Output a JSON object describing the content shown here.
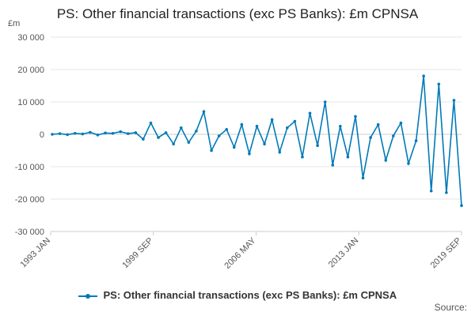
{
  "chart_data": {
    "type": "line",
    "title": "PS: Other financial transactions (exc PS Banks): £m CPNSA",
    "ylabel": "£m",
    "ylim": [
      -30000,
      30000
    ],
    "yticks": [
      "30 000",
      "20 000",
      "10 000",
      "0",
      "-10 000",
      "-20 000",
      "-30 000"
    ],
    "ytick_values": [
      30000,
      20000,
      10000,
      0,
      -10000,
      -20000,
      -30000
    ],
    "xticks": [
      "1993 JAN",
      "1999 SEP",
      "2006 MAY",
      "2013 JAN",
      "2019 SEP"
    ],
    "grid": "horizontal",
    "legend_position": "bottom",
    "colors": {
      "series": "#007ab8",
      "grid": "#e6e6e6",
      "axis": "#cccccc"
    },
    "x": [
      "1993 JAN",
      "1993 JUL",
      "1994 JAN",
      "1994 JUL",
      "1995 JAN",
      "1995 JUL",
      "1996 JAN",
      "1996 JUL",
      "1997 JAN",
      "1997 JUL",
      "1998 JAN",
      "1998 JUL",
      "1999 JAN",
      "1999 JUL",
      "2000 JAN",
      "2000 JUL",
      "2001 JAN",
      "2001 JUL",
      "2002 JAN",
      "2002 JUL",
      "2003 JAN",
      "2003 JUL",
      "2004 JAN",
      "2004 JUL",
      "2005 JAN",
      "2005 JUL",
      "2006 JAN",
      "2006 JUL",
      "2007 JAN",
      "2007 JUL",
      "2008 JAN",
      "2008 JUL",
      "2009 JAN",
      "2009 JUL",
      "2010 JAN",
      "2010 JUL",
      "2011 JAN",
      "2011 JUL",
      "2012 JAN",
      "2012 JUL",
      "2013 JAN",
      "2013 JUL",
      "2014 JAN",
      "2014 JUL",
      "2015 JAN",
      "2015 JUL",
      "2016 JAN",
      "2016 JUL",
      "2017 JAN",
      "2017 JUL",
      "2018 JAN",
      "2018 JUL",
      "2019 JAN",
      "2019 JUL",
      "2019 SEP"
    ],
    "series": [
      {
        "name": "PS: Other financial transactions (exc PS Banks): £m CPNSA",
        "values": [
          0,
          200,
          -100,
          300,
          100,
          600,
          -200,
          400,
          300,
          800,
          200,
          500,
          -1500,
          3500,
          -1000,
          500,
          -3000,
          2000,
          -2500,
          1000,
          7000,
          -5000,
          -500,
          1500,
          -4000,
          3000,
          -6000,
          2500,
          -3000,
          4500,
          -5500,
          2000,
          4000,
          -7000,
          6500,
          -3500,
          10000,
          -9500,
          2500,
          -7000,
          5500,
          -13500,
          -1000,
          3000,
          -8000,
          -500,
          3500,
          -9000,
          -2000,
          18000,
          -17500,
          15500,
          -18000,
          10500,
          -22000
        ]
      }
    ],
    "legend": [
      "PS: Other financial transactions (exc PS Banks): £m CPNSA"
    ],
    "source": "Source:"
  }
}
